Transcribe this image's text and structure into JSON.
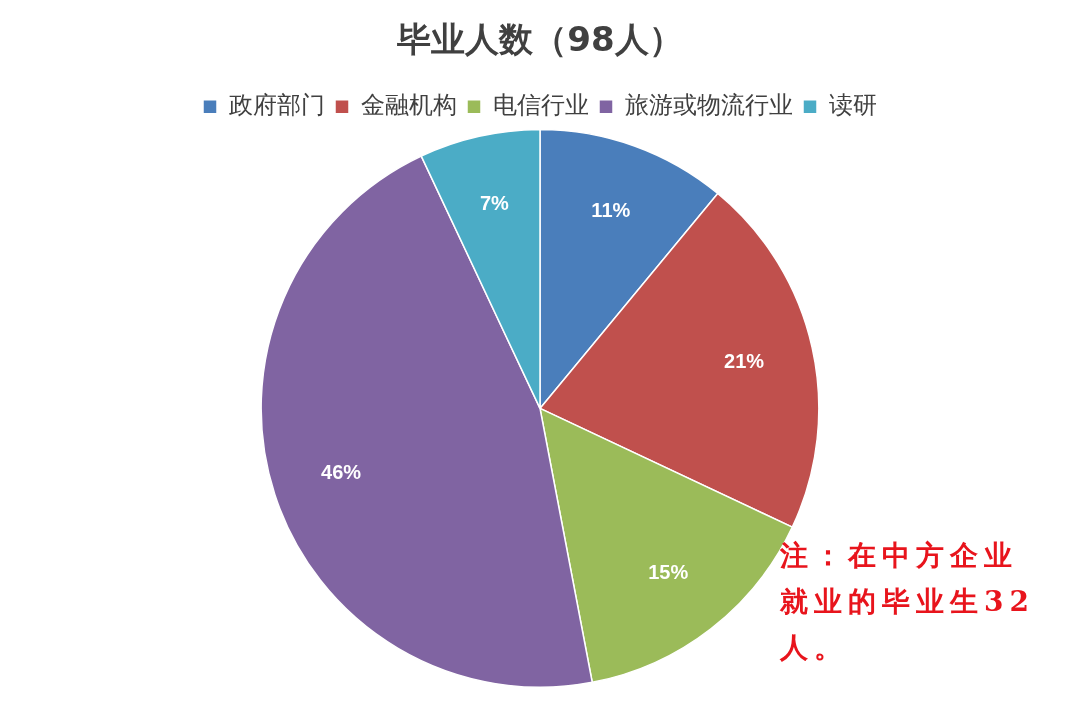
{
  "chart_data": {
    "type": "pie",
    "title": "毕业人数（98人）",
    "categories": [
      "政府部门",
      "金融机构",
      "电信行业",
      "旅游或物流行业",
      "读研"
    ],
    "values": [
      11,
      21,
      15,
      46,
      7
    ],
    "colors": [
      "#4a7ebb",
      "#c0504d",
      "#9bbb59",
      "#8064a2",
      "#4bacc6"
    ],
    "value_labels": [
      "11%",
      "21%",
      "15%",
      "46%",
      "7%"
    ],
    "legend": "top",
    "annotations": [
      "注：在中方企业就业的毕业生32人。"
    ]
  }
}
